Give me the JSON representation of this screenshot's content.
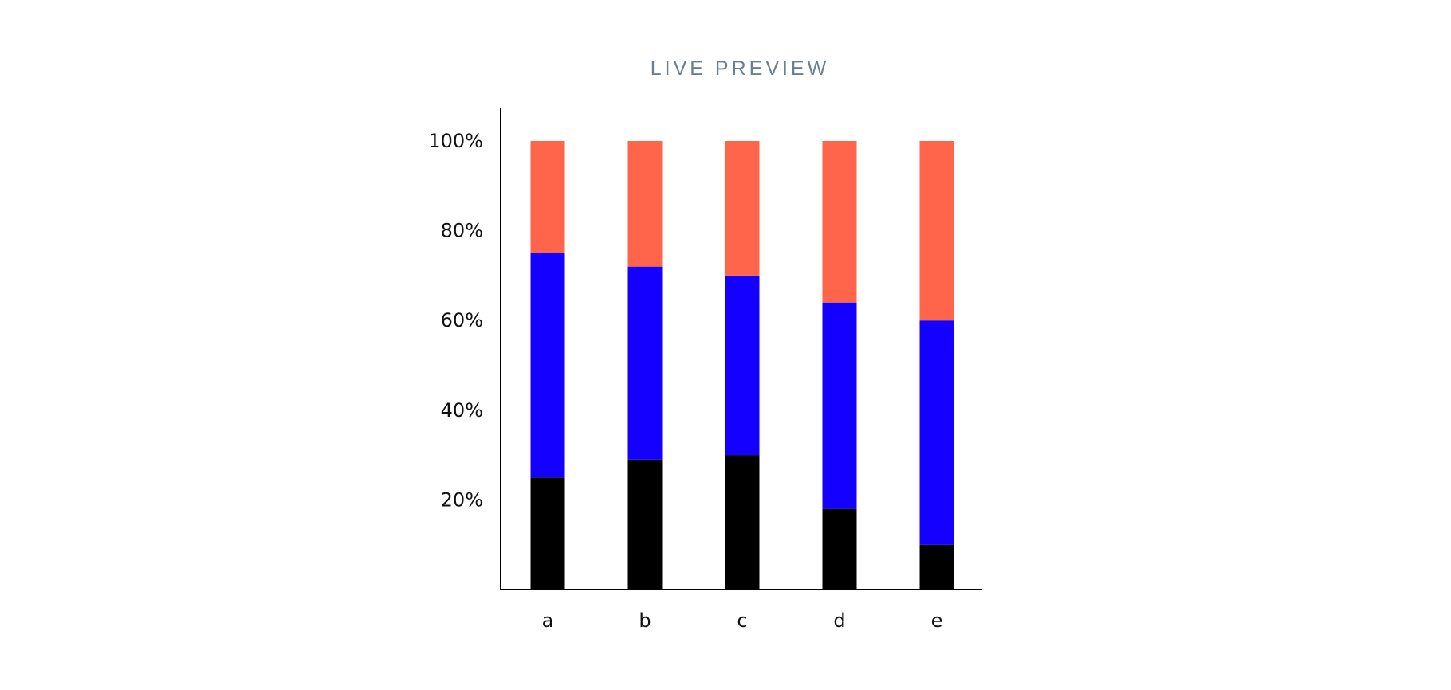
{
  "header": {
    "title": "LIVE PREVIEW"
  },
  "chart_data": {
    "type": "bar",
    "stacked": true,
    "categories": [
      "a",
      "b",
      "c",
      "d",
      "e"
    ],
    "series": [
      {
        "values": [
          25,
          29,
          30,
          18,
          10
        ],
        "color": "#000000"
      },
      {
        "values": [
          50,
          43,
          40,
          46,
          50
        ],
        "color": "#1400ff"
      },
      {
        "values": [
          25,
          28,
          30,
          36,
          40
        ],
        "color": "#ff654b"
      }
    ],
    "yticks": [
      20,
      40,
      60,
      80,
      100
    ],
    "ytick_labels": [
      "20%",
      "40%",
      "60%",
      "80%",
      "100%"
    ],
    "ylim": [
      0,
      100
    ],
    "grid": false,
    "legend": "none"
  }
}
